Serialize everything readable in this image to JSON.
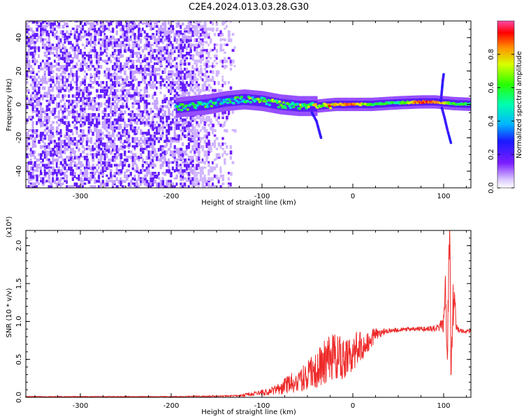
{
  "title": "C2E4.2024.013.03.28.G30",
  "chart_data": [
    {
      "type": "heatmap",
      "xlabel": "Height of straight line (km)",
      "ylabel": "Frequency (Hz)",
      "xlim": [
        -360,
        130
      ],
      "ylim": [
        -50,
        50
      ],
      "x_ticks": [
        -300,
        -200,
        -100,
        0,
        100
      ],
      "x_tick_labels": [
        "-300",
        "-200",
        "-100",
        "0",
        "100"
      ],
      "y_ticks": [
        -40,
        -20,
        0,
        20,
        40
      ],
      "y_tick_labels": [
        "-40",
        "-20",
        "0",
        "20",
        "40"
      ],
      "colorbar": {
        "label": "Normalized spectral amplitude",
        "range": [
          0,
          1
        ],
        "ticks": [
          0.0,
          0.2,
          0.4,
          0.6,
          0.8
        ],
        "tick_labels": [
          "0.0",
          "0.2",
          "0.4",
          "0.6",
          "0.8"
        ]
      },
      "ridge": [
        {
          "x": -195,
          "y": -2,
          "amp": 0.45
        },
        {
          "x": -180,
          "y": -1,
          "amp": 0.5
        },
        {
          "x": -160,
          "y": 0,
          "amp": 0.5
        },
        {
          "x": -140,
          "y": 2,
          "amp": 0.5
        },
        {
          "x": -120,
          "y": 3,
          "amp": 0.55
        },
        {
          "x": -100,
          "y": 2,
          "amp": 0.55
        },
        {
          "x": -80,
          "y": 0,
          "amp": 0.6
        },
        {
          "x": -60,
          "y": -1,
          "amp": 0.6
        },
        {
          "x": -40,
          "y": -1,
          "amp": 0.65
        },
        {
          "x": -20,
          "y": 0,
          "amp": 0.8
        },
        {
          "x": 0,
          "y": 0,
          "amp": 0.85
        },
        {
          "x": 20,
          "y": 0,
          "amp": 0.6
        },
        {
          "x": 50,
          "y": 1,
          "amp": 0.55
        },
        {
          "x": 75,
          "y": 1.5,
          "amp": 0.9
        },
        {
          "x": 90,
          "y": 1.5,
          "amp": 0.85
        },
        {
          "x": 110,
          "y": 0.5,
          "amp": 0.6
        },
        {
          "x": 130,
          "y": 0,
          "amp": 0.55
        }
      ],
      "noise_region": {
        "x_from": -360,
        "x_to": -130
      },
      "side_branches": [
        {
          "points": [
            [
              -45,
              -5
            ],
            [
              -40,
              -10
            ],
            [
              -37,
              -16
            ],
            [
              -35,
              -20
            ]
          ]
        },
        {
          "points": [
            [
              97,
              2
            ],
            [
              98,
              8
            ],
            [
              99,
              14
            ],
            [
              100,
              18
            ]
          ]
        },
        {
          "points": [
            [
              98,
              -2
            ],
            [
              101,
              -8
            ],
            [
              104,
              -15
            ],
            [
              108,
              -23
            ]
          ]
        }
      ]
    },
    {
      "type": "line",
      "xlabel": "Height of straight line (km)",
      "ylabel": "SNR (10 * v/v)",
      "y_scale_label": "(x10⁴)",
      "xlim": [
        -360,
        130
      ],
      "ylim": [
        0,
        2.2
      ],
      "x_ticks": [
        -300,
        -200,
        -100,
        0,
        100
      ],
      "x_tick_labels": [
        "-300",
        "-200",
        "-100",
        "0",
        "100"
      ],
      "y_ticks": [
        0.0,
        0.5,
        1.0,
        1.5,
        2.0
      ],
      "y_tick_labels": [
        "0.0",
        "0.5",
        "1.0",
        "1.5",
        "2.0"
      ],
      "color": "#ee2a2a",
      "series": [
        {
          "x": [
            -360,
            -300,
            -250,
            -200,
            -150,
            -130,
            -120,
            -110,
            -100,
            -90,
            -80,
            -70,
            -60,
            -50,
            -40,
            -30,
            -20,
            -10,
            0,
            10,
            20,
            30,
            40,
            50,
            60,
            70,
            80,
            90,
            95,
            100,
            102,
            104,
            106,
            107,
            108,
            110,
            112,
            115,
            120,
            130
          ],
          "values": [
            0.01,
            0.01,
            0.01,
            0.01,
            0.015,
            0.02,
            0.03,
            0.05,
            0.06,
            0.08,
            0.12,
            0.18,
            0.22,
            0.28,
            0.35,
            0.48,
            0.55,
            0.5,
            0.6,
            0.68,
            0.78,
            0.85,
            0.88,
            0.89,
            0.9,
            0.9,
            0.9,
            0.91,
            0.92,
            1.0,
            1.5,
            0.5,
            1.9,
            2.2,
            0.2,
            1.2,
            1.25,
            0.88,
            0.87,
            0.87
          ]
        }
      ],
      "series_noise": [
        0.005,
        0.005,
        0.005,
        0.005,
        0.01,
        0.01,
        0.02,
        0.03,
        0.04,
        0.05,
        0.08,
        0.12,
        0.15,
        0.2,
        0.25,
        0.3,
        0.3,
        0.28,
        0.25,
        0.2,
        0.12,
        0.06,
        0.03,
        0.03,
        0.03,
        0.03,
        0.03,
        0.04,
        0.05,
        0.15,
        0.2,
        0.2,
        0.3,
        0.2,
        0.2,
        0.3,
        0.25,
        0.05,
        0.03,
        0.03
      ]
    }
  ]
}
